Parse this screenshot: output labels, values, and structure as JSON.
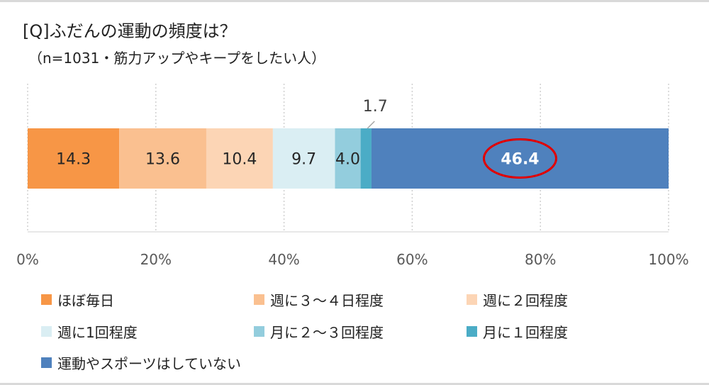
{
  "title": "[Q]ふだんの運動の頻度は？",
  "subtitle": "（n=1031・筋力アップやキープをしたい人）",
  "chart_data": {
    "type": "bar",
    "orientation": "horizontal-stacked-100",
    "xlim": [
      0,
      100
    ],
    "x_ticks": [
      "0%",
      "20%",
      "40%",
      "60%",
      "80%",
      "100%"
    ],
    "grid": "vertical dotted",
    "legend_placement": "bottom",
    "highlight": {
      "series": "運動やスポーツはしていない",
      "style": "red ellipse"
    },
    "series": [
      {
        "name": "ほぼ毎日",
        "value": 14.3,
        "label": "14.3",
        "color": "#F79646"
      },
      {
        "name": "週に３～４日程度",
        "value": 13.6,
        "label": "13.6",
        "color": "#FAC090"
      },
      {
        "name": "週に２回程度",
        "value": 10.4,
        "label": "10.4",
        "color": "#FCD5B5"
      },
      {
        "name": "週に1回程度",
        "value": 9.7,
        "label": "9.7",
        "color": "#DAEEF3"
      },
      {
        "name": "月に２～３回程度",
        "value": 4.0,
        "label": "4.0",
        "color": "#93CDDD"
      },
      {
        "name": "月に１回程度",
        "value": 1.7,
        "label": "1.7",
        "color": "#4BACC6"
      },
      {
        "name": "運動やスポーツはしていない",
        "value": 46.4,
        "label": "46.4",
        "color": "#4F81BD"
      }
    ]
  }
}
